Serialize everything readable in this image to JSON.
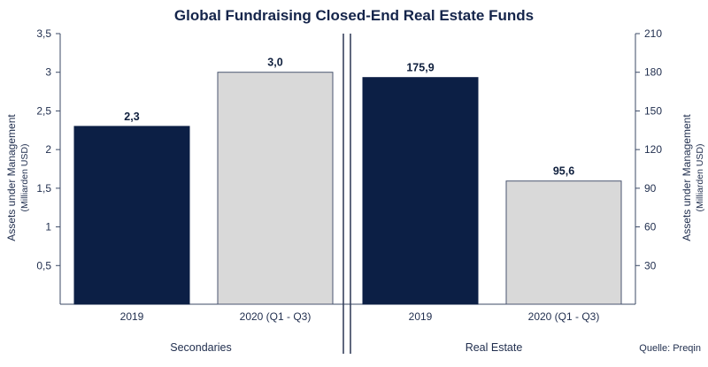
{
  "title": "Global Fundraising Closed-End Real Estate Funds",
  "source": "Quelle: Preqin",
  "colors": {
    "dark": "#0c1f45",
    "light": "#d9d9d9",
    "axis": "#3b4a66"
  },
  "chart_data": [
    {
      "type": "bar",
      "panel_label": "Secondaries",
      "categories": [
        "2019",
        "2020 (Q1 - Q3)"
      ],
      "values": [
        2.3,
        3.0
      ],
      "value_labels": [
        "2,3",
        "3,0"
      ],
      "ylabel": "Assets under Management",
      "ylabel_sub": "(Milliarden USD)",
      "ylim": [
        0,
        3.5
      ],
      "yticks": [
        0.5,
        1,
        1.5,
        2,
        2.5,
        3,
        3.5
      ],
      "ytick_labels": [
        "0,5",
        "1",
        "1,5",
        "2",
        "2,5",
        "3",
        "3,5"
      ],
      "axis_side": "left"
    },
    {
      "type": "bar",
      "panel_label": "Real Estate",
      "categories": [
        "2019",
        "2020 (Q1 - Q3)"
      ],
      "values": [
        175.9,
        95.6
      ],
      "value_labels": [
        "175,9",
        "95,6"
      ],
      "ylabel": "Assets under Management",
      "ylabel_sub": "(Milliarden USD)",
      "ylim": [
        0,
        210
      ],
      "yticks": [
        30,
        60,
        90,
        120,
        150,
        180,
        210
      ],
      "ytick_labels": [
        "30",
        "60",
        "90",
        "120",
        "150",
        "180",
        "210"
      ],
      "axis_side": "right"
    }
  ]
}
